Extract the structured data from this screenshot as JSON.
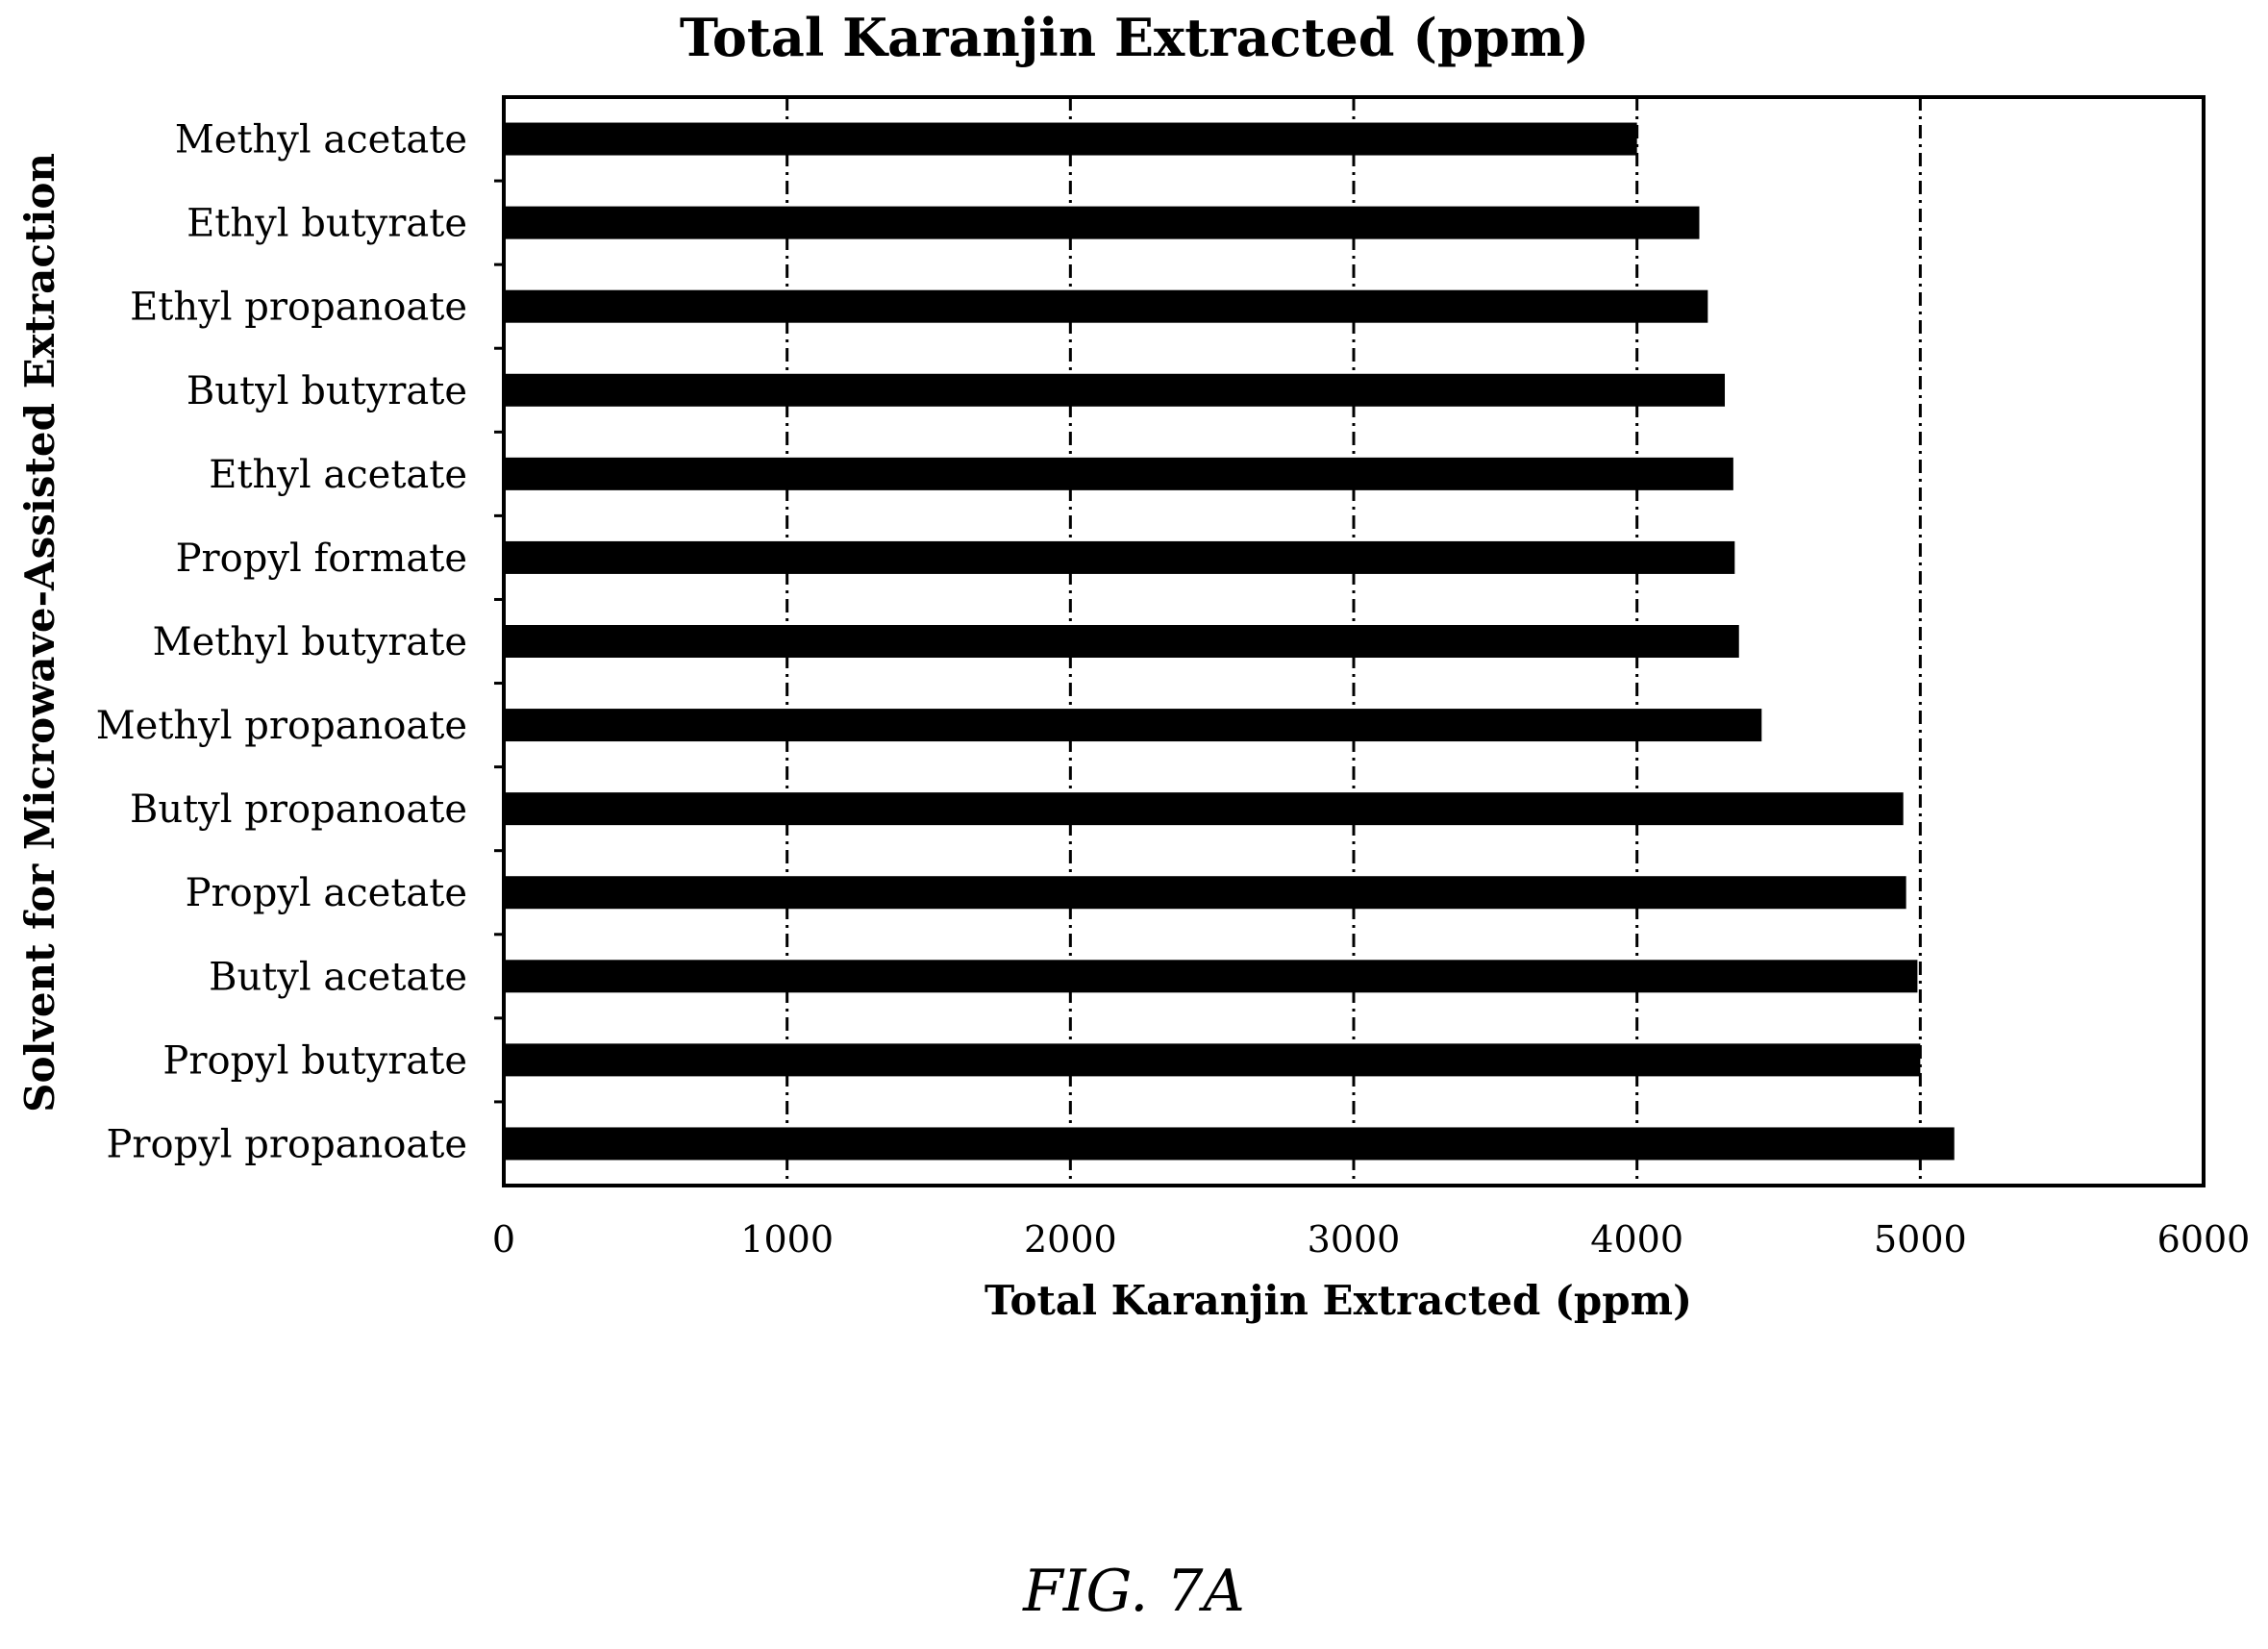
{
  "chart_data": {
    "type": "bar",
    "orientation": "horizontal",
    "title": "Total Karanjin Extracted (ppm)",
    "xlabel": "Total Karanjin Extracted (ppm)",
    "ylabel": "Solvent  for Microwave-Assisted Extraction",
    "xlim": [
      0,
      6000
    ],
    "xticks": [
      "0",
      "1000",
      "2000",
      "3000",
      "4000",
      "5000",
      "6000"
    ],
    "grid": "vertical dash-dot",
    "categories": [
      "Methyl acetate",
      "Ethyl butyrate",
      "Ethyl propanoate",
      "Butyl butyrate",
      "Ethyl acetate",
      "Propyl formate",
      "Methyl butyrate",
      "Methyl propanoate",
      "Butyl propanoate",
      "Propyl acetate",
      "Butyl acetate",
      "Propyl butyrate",
      "Propyl propanoate"
    ],
    "values": [
      4000,
      4220,
      4250,
      4310,
      4340,
      4345,
      4360,
      4440,
      4940,
      4950,
      4990,
      5000,
      5120
    ],
    "bar_color": "#000000"
  },
  "caption": "FIG. 7A"
}
